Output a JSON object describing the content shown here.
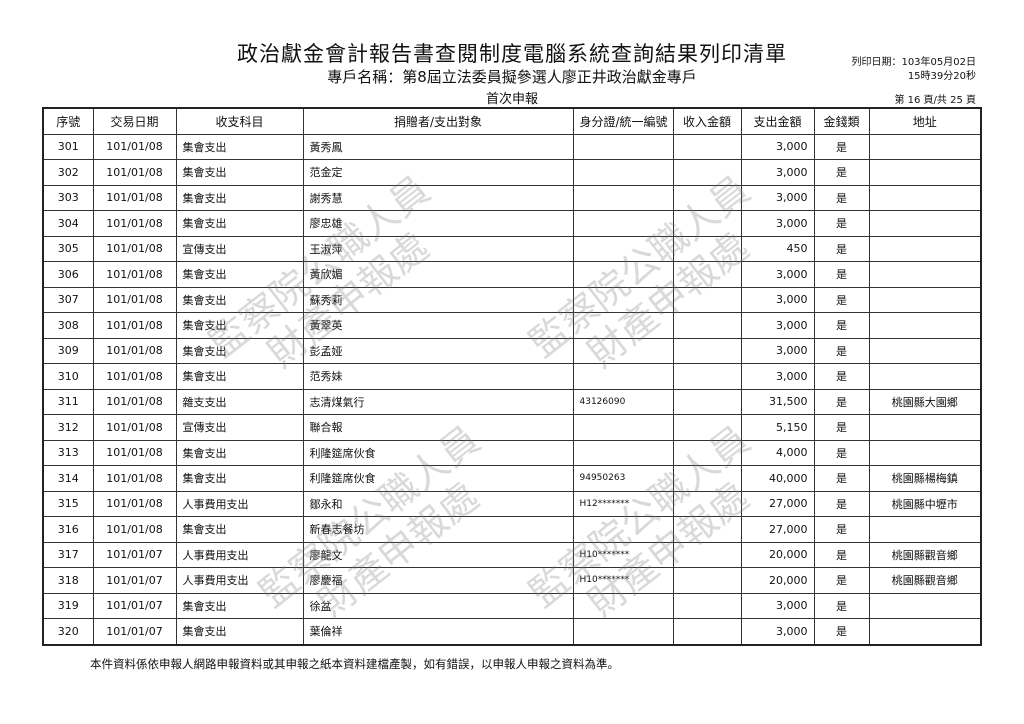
{
  "header": {
    "title": "政治獻金會計報告書查閱制度電腦系統查詢結果列印清單",
    "subtitle": "專戶名稱：第8屆立法委員擬參選人廖正井政治獻金專戶",
    "report_type": "首次申報",
    "print_date": "列印日期：103年05月02日",
    "print_time": "15時39分20秒",
    "page_info": "第 16 頁/共 25 頁"
  },
  "table": {
    "columns": [
      "序號",
      "交易日期",
      "收支科目",
      "捐贈者/支出對象",
      "身分證/統一編號",
      "收入金額",
      "支出金額",
      "金錢類",
      "地址"
    ],
    "rows": [
      [
        "301",
        "101/01/08",
        "集會支出",
        "黃秀鳳",
        "",
        "",
        "3,000",
        "是",
        ""
      ],
      [
        "302",
        "101/01/08",
        "集會支出",
        "范金定",
        "",
        "",
        "3,000",
        "是",
        ""
      ],
      [
        "303",
        "101/01/08",
        "集會支出",
        "謝秀慧",
        "",
        "",
        "3,000",
        "是",
        ""
      ],
      [
        "304",
        "101/01/08",
        "集會支出",
        "廖忠雄",
        "",
        "",
        "3,000",
        "是",
        ""
      ],
      [
        "305",
        "101/01/08",
        "宣傳支出",
        "王淑萍",
        "",
        "",
        "450",
        "是",
        ""
      ],
      [
        "306",
        "101/01/08",
        "集會支出",
        "黃欣媚",
        "",
        "",
        "3,000",
        "是",
        ""
      ],
      [
        "307",
        "101/01/08",
        "集會支出",
        "蘇秀莉",
        "",
        "",
        "3,000",
        "是",
        ""
      ],
      [
        "308",
        "101/01/08",
        "集會支出",
        "黃翠英",
        "",
        "",
        "3,000",
        "是",
        ""
      ],
      [
        "309",
        "101/01/08",
        "集會支出",
        "彭孟娅",
        "",
        "",
        "3,000",
        "是",
        ""
      ],
      [
        "310",
        "101/01/08",
        "集會支出",
        "范秀妹",
        "",
        "",
        "3,000",
        "是",
        ""
      ],
      [
        "311",
        "101/01/08",
        "雜支支出",
        "志清煤氣行",
        "43126090",
        "",
        "31,500",
        "是",
        "桃園縣大園鄉"
      ],
      [
        "312",
        "101/01/08",
        "宣傳支出",
        "聯合報",
        "",
        "",
        "5,150",
        "是",
        ""
      ],
      [
        "313",
        "101/01/08",
        "集會支出",
        "利隆筵席伙食",
        "",
        "",
        "4,000",
        "是",
        ""
      ],
      [
        "314",
        "101/01/08",
        "集會支出",
        "利隆筵席伙食",
        "94950263",
        "",
        "40,000",
        "是",
        "桃園縣楊梅鎮"
      ],
      [
        "315",
        "101/01/08",
        "人事費用支出",
        "鄒永和",
        "H12*******",
        "",
        "27,000",
        "是",
        "桃園縣中壢市"
      ],
      [
        "316",
        "101/01/08",
        "集會支出",
        "新春志餐坊",
        "",
        "",
        "27,000",
        "是",
        ""
      ],
      [
        "317",
        "101/01/07",
        "人事費用支出",
        "廖龍文",
        "H10*******",
        "",
        "20,000",
        "是",
        "桃園縣觀音鄉"
      ],
      [
        "318",
        "101/01/07",
        "人事費用支出",
        "廖慶福",
        "H10*******",
        "",
        "20,000",
        "是",
        "桃園縣觀音鄉"
      ],
      [
        "319",
        "101/01/07",
        "集會支出",
        "徐盆",
        "",
        "",
        "3,000",
        "是",
        ""
      ],
      [
        "320",
        "101/01/07",
        "集會支出",
        "葉倫祥",
        "",
        "",
        "3,000",
        "是",
        ""
      ]
    ]
  },
  "footer": "本件資料係依申報人網路申報資料或其申報之紙本資料建檔產製，如有錯誤，以申報人申報之資料為準。",
  "watermark": {
    "line1": "監察院公職人員",
    "line2": "財產申報處"
  }
}
